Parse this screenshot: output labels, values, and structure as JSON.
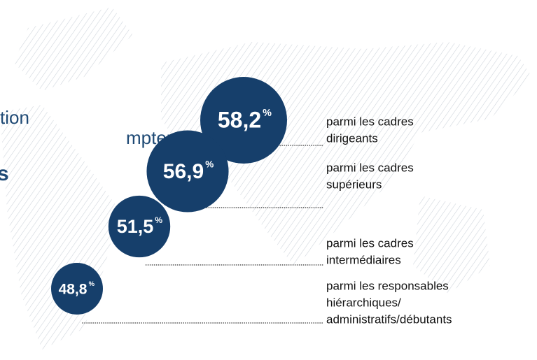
{
  "chart_data": {
    "type": "bubble",
    "headline_fragments": [
      "tion",
      "mpter",
      "s"
    ],
    "categories": [
      [
        "parmi les cadres",
        "dirigeants"
      ],
      [
        "parmi les cadres",
        "supérieurs"
      ],
      [
        "parmi les cadres",
        "intermédiaires"
      ],
      [
        "parmi les responsables",
        "hiérarchiques/",
        "administratifs/débutants"
      ]
    ],
    "values": [
      58.2,
      56.9,
      51.5,
      48.8
    ],
    "value_labels": [
      "58,2",
      "56,9",
      "51,5",
      "48,8"
    ],
    "unit": "%",
    "color": "#163f6b"
  }
}
